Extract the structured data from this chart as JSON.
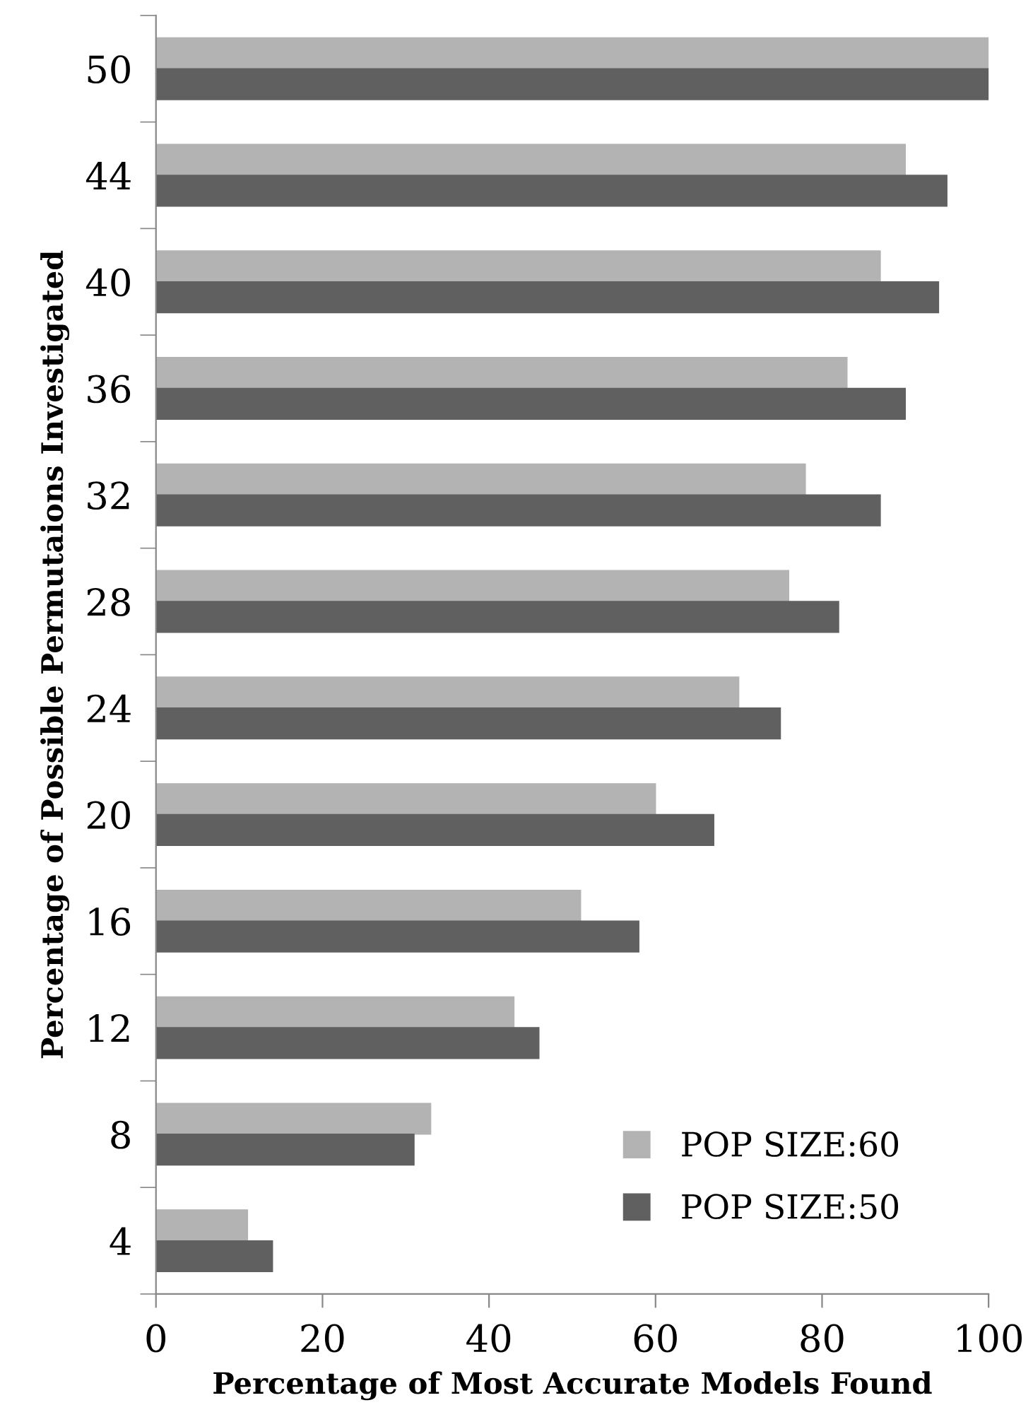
{
  "chart_data": {
    "type": "bar",
    "orientation": "horizontal",
    "categories": [
      "50",
      "44",
      "40",
      "36",
      "32",
      "28",
      "24",
      "20",
      "16",
      "12",
      "8",
      "4"
    ],
    "series": [
      {
        "name": "POP SIZE:60",
        "color": "#b3b3b3",
        "values": [
          100,
          90,
          87,
          83,
          78,
          76,
          70,
          60,
          51,
          43,
          33,
          11
        ]
      },
      {
        "name": "POP SIZE:50",
        "color": "#606060",
        "values": [
          100,
          95,
          94,
          90,
          87,
          82,
          75,
          67,
          58,
          46,
          31,
          14
        ]
      }
    ],
    "xlabel": "Percentage of Most Accurate Models Found",
    "ylabel": "Percentage of Possible Permutaions Investigated",
    "xlim": [
      0,
      100
    ],
    "xticks": [
      0,
      20,
      40,
      60,
      80,
      100
    ],
    "grid": false,
    "legend": "bottom right"
  }
}
